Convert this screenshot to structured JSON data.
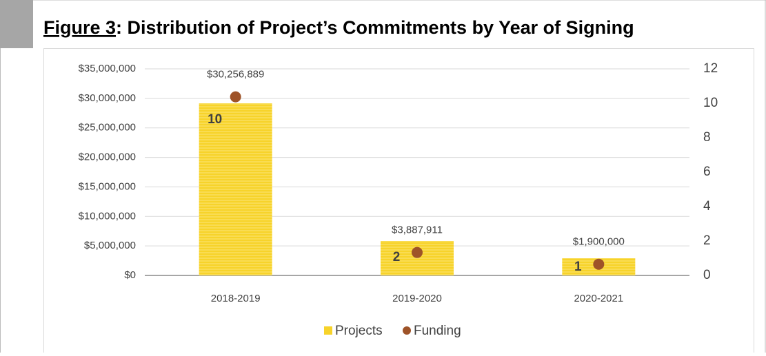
{
  "chart_data": {
    "type": "bar",
    "figure_label": "Figure 3",
    "title": ": Distribution of Project’s Commitments by Year of Signing",
    "categories": [
      "2018-2019",
      "2019-2020",
      "2020-2021"
    ],
    "series": [
      {
        "name": "Projects",
        "color": "#f7d32a",
        "axis": "y2",
        "values": [
          10,
          2,
          1
        ]
      },
      {
        "name": "Funding",
        "color": "#9e5328",
        "type": "scatter",
        "values": [
          30256889,
          3887911,
          1900000
        ],
        "value_labels": [
          "$30,256,889",
          "$3,887,911",
          "$1,900,000"
        ]
      }
    ],
    "ylim": [
      0,
      35000000
    ],
    "yticks": [
      {
        "value": 0,
        "label": "$0"
      },
      {
        "value": 5000000,
        "label": "$5,000,000"
      },
      {
        "value": 10000000,
        "label": "$10,000,000"
      },
      {
        "value": 15000000,
        "label": "$15,000,000"
      },
      {
        "value": 20000000,
        "label": "$20,000,000"
      },
      {
        "value": 25000000,
        "label": "$25,000,000"
      },
      {
        "value": 30000000,
        "label": "$30,000,000"
      },
      {
        "value": 35000000,
        "label": "$35,000,000"
      }
    ],
    "y2lim": [
      0,
      12
    ],
    "y2ticks": [
      0,
      2,
      4,
      6,
      8,
      10,
      12
    ],
    "grid": true,
    "legend": "bottom"
  }
}
